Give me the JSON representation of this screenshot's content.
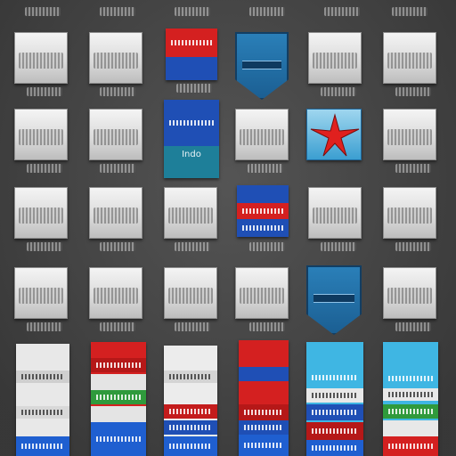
{
  "colors": {
    "background": "#4a4a4a",
    "red": "#d42020",
    "blue": "#1f4fb5",
    "cyan": "#3fb6e3",
    "green": "#2f9a3c",
    "teal": "#1e7f99"
  },
  "icons": {
    "shield": "shield-icon",
    "cross": "airplane-cross-icon"
  },
  "tile_text": {
    "indo_label": "Indo"
  }
}
